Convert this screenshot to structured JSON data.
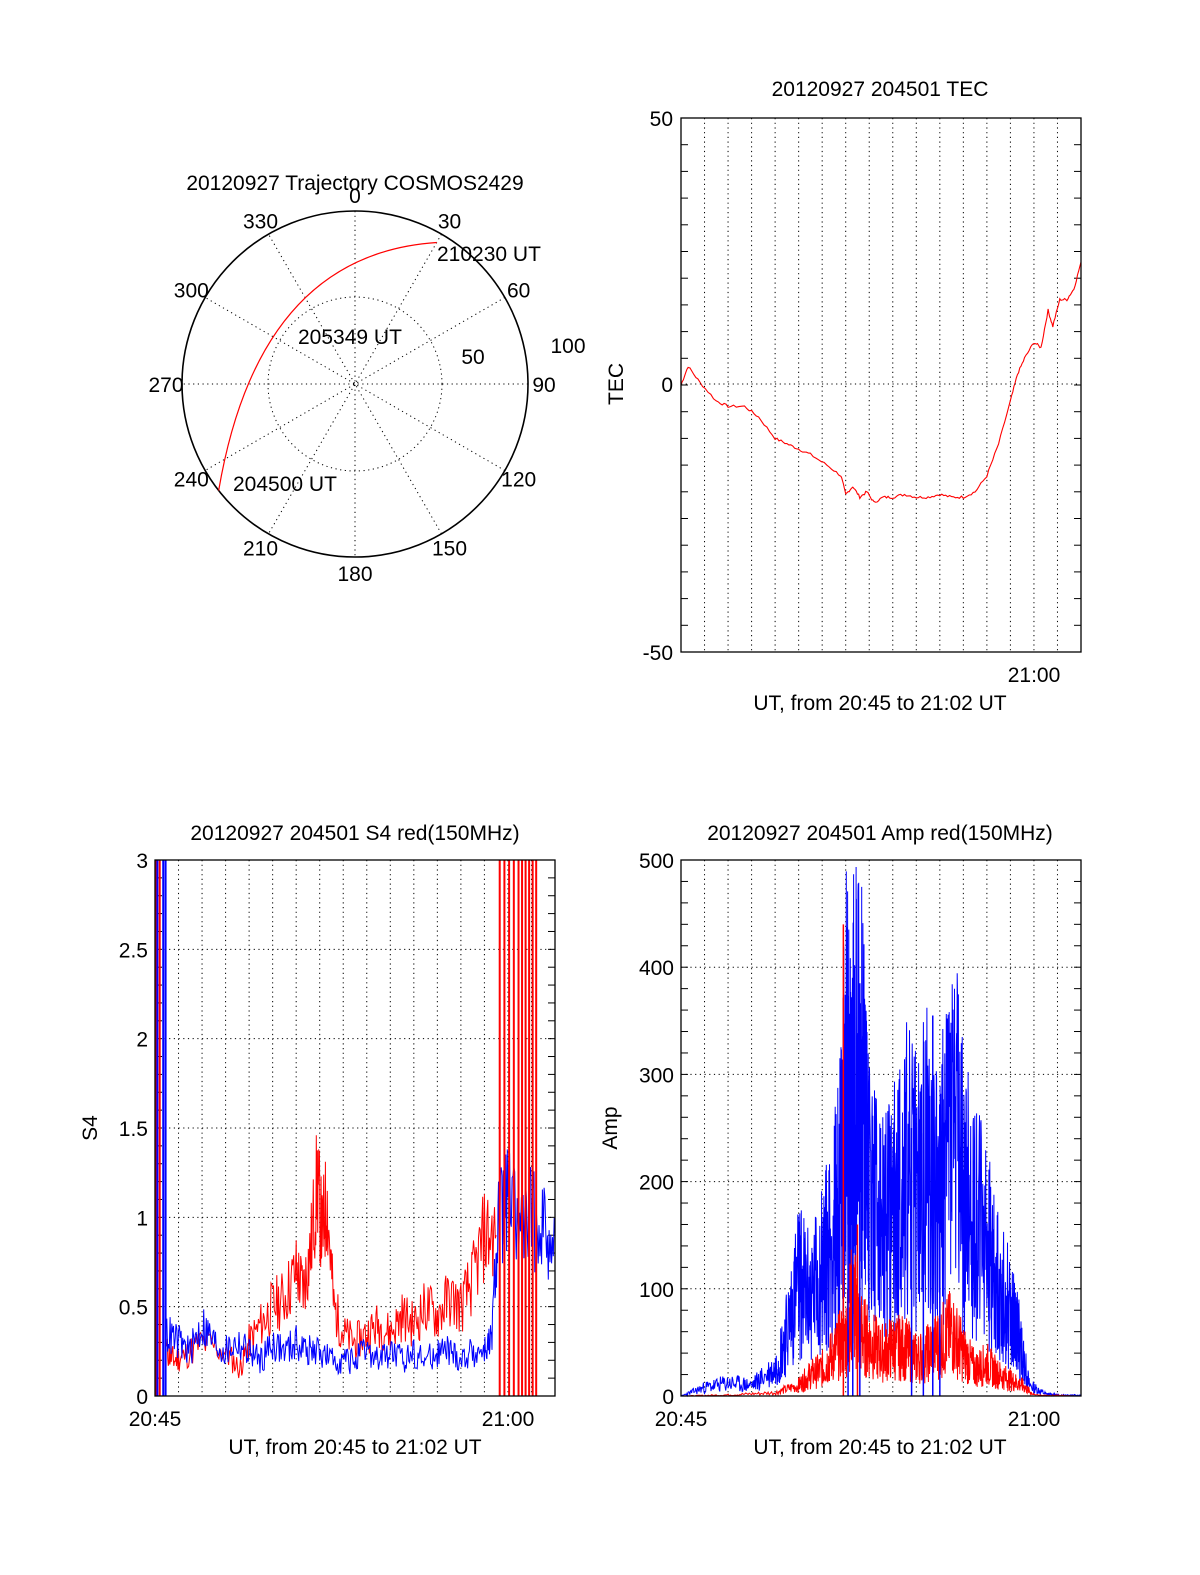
{
  "chart_data": [
    {
      "type": "polar",
      "title": "20120927 Trajectory COSMOS2429",
      "azimuth_labels": [
        "0",
        "30",
        "60",
        "90",
        "120",
        "150",
        "180",
        "210",
        "240",
        "270",
        "300",
        "330"
      ],
      "radial_labels": [
        "50",
        "100"
      ],
      "trajectory_points": [
        {
          "label": "204500 UT",
          "azimuth_deg": 232,
          "zenith_deg": 90
        },
        {
          "label": "205349 UT",
          "azimuth_deg": 320,
          "zenith_deg": 50
        },
        {
          "label": "210230 UT",
          "azimuth_deg": 30,
          "zenith_deg": 85
        }
      ],
      "trajectory_color": "#ff0000"
    },
    {
      "type": "line",
      "title": "20120927 204501 TEC",
      "xlabel": "UT, from 20:45 to 21:02 UT",
      "ylabel": "TEC",
      "ylim": [
        -50,
        50
      ],
      "yticks": [
        "50",
        "0",
        "-50"
      ],
      "xlim_minutes": [
        0,
        17
      ],
      "xticks": [
        "21:00"
      ],
      "grid": "vertical dotted",
      "series": [
        {
          "color": "#ff0000",
          "x": [
            0,
            0.3,
            0.8,
            1.5,
            2.0,
            2.7,
            3.3,
            4.0,
            4.5,
            5.0,
            5.5,
            6.2,
            6.8,
            7.0,
            7.3,
            7.6,
            7.9,
            8.2,
            8.6,
            9.0,
            9.5,
            10.0,
            10.5,
            11.0,
            11.5,
            12.0,
            12.5,
            13.0,
            13.5,
            14.0,
            14.3,
            14.6,
            15.0,
            15.3,
            15.6,
            15.8,
            16.1,
            16.4,
            16.7,
            17.0
          ],
          "y": [
            0,
            3.5,
            0.5,
            -3,
            -4,
            -4,
            -6,
            -10,
            -11,
            -12,
            -13,
            -15,
            -17,
            -20.5,
            -19,
            -21,
            -20,
            -22,
            -21,
            -21,
            -20.5,
            -21,
            -21,
            -20.5,
            -21,
            -21,
            -20,
            -17,
            -11,
            -3,
            2,
            5,
            8,
            7,
            14,
            11,
            16,
            16,
            18,
            23
          ]
        }
      ]
    },
    {
      "type": "line",
      "title": "20120927 204501 S4 red(150MHz)",
      "xlabel": "UT, from 20:45 to 21:02 UT",
      "ylabel": "S4",
      "ylim": [
        0,
        3
      ],
      "yticks": [
        "0",
        "0.5",
        "1",
        "1.5",
        "2",
        "2.5",
        "3"
      ],
      "xlim_minutes": [
        0,
        17
      ],
      "xticks": [
        "20:45",
        "21:00"
      ],
      "grid": "dotted",
      "series": [
        {
          "color": "#ff0000",
          "x": [
            0.5,
            0.8,
            1.2,
            2.0,
            3.0,
            3.6,
            4.0,
            4.5,
            5.0,
            5.5,
            6.0,
            6.3,
            6.6,
            6.9,
            7.1,
            7.3,
            7.6,
            8.0,
            8.5,
            9.0,
            9.5,
            10.0,
            10.5,
            11.0,
            11.5,
            12.0,
            12.5,
            13.0,
            13.5,
            14.0,
            14.5
          ],
          "y": [
            0.25,
            0.2,
            0.22,
            0.3,
            0.25,
            0.15,
            0.3,
            0.4,
            0.5,
            0.55,
            0.7,
            0.6,
            0.8,
            1.2,
            0.9,
            1.1,
            0.5,
            0.35,
            0.3,
            0.35,
            0.4,
            0.35,
            0.45,
            0.4,
            0.5,
            0.45,
            0.55,
            0.5,
            0.65,
            0.9,
            0.9
          ]
        },
        {
          "color": "#0000ff",
          "x": [
            0.5,
            1.0,
            1.5,
            2.0,
            2.5,
            3.0,
            3.5,
            4.0,
            4.5,
            5.0,
            5.5,
            6.0,
            6.5,
            7.0,
            7.5,
            8.0,
            8.5,
            9.0,
            9.5,
            10.0,
            10.5,
            11.0,
            11.5,
            12.0,
            12.5,
            13.0,
            13.5,
            14.0,
            14.3,
            14.6,
            15.0,
            15.5,
            16.0,
            16.5,
            17.0
          ],
          "y": [
            0.35,
            0.3,
            0.25,
            0.4,
            0.3,
            0.25,
            0.3,
            0.25,
            0.2,
            0.3,
            0.25,
            0.3,
            0.25,
            0.25,
            0.2,
            0.2,
            0.2,
            0.25,
            0.2,
            0.25,
            0.2,
            0.25,
            0.2,
            0.25,
            0.25,
            0.2,
            0.25,
            0.25,
            0.3,
            1.0,
            1.1,
            0.9,
            1.0,
            0.95,
            0.9
          ]
        }
      ],
      "spikes": [
        {
          "color": "#ff0000",
          "x": [
            0.05,
            0.2,
            14.65,
            14.85,
            15.05,
            15.25,
            15.45,
            15.6,
            15.75,
            15.9,
            16.05,
            16.2
          ]
        },
        {
          "color": "#0000ff",
          "x": [
            0.1,
            0.35,
            0.45
          ]
        }
      ]
    },
    {
      "type": "line",
      "title": "20120927 204501 Amp red(150MHz)",
      "xlabel": "UT, from 20:45 to 21:02 UT",
      "ylabel": "Amp",
      "ylim": [
        0,
        500
      ],
      "yticks": [
        "0",
        "100",
        "200",
        "300",
        "400",
        "500"
      ],
      "xlim_minutes": [
        0,
        17
      ],
      "xticks": [
        "20:45",
        "21:00"
      ],
      "grid": "dotted",
      "series": [
        {
          "color": "#0000ff",
          "x": [
            0,
            1.0,
            2.0,
            3.0,
            4.0,
            4.5,
            5.0,
            5.5,
            6.0,
            6.5,
            6.8,
            7.0,
            7.2,
            7.5,
            7.8,
            8.0,
            8.5,
            9.0,
            9.5,
            10.0,
            10.5,
            11.0,
            11.5,
            12.0,
            12.5,
            13.0,
            13.5,
            14.0,
            14.3,
            14.8,
            15.5,
            16.0,
            17.0
          ],
          "y": [
            0,
            8,
            12,
            10,
            25,
            60,
            110,
            90,
            120,
            150,
            200,
            300,
            260,
            330,
            250,
            200,
            150,
            170,
            210,
            190,
            220,
            180,
            270,
            190,
            170,
            140,
            100,
            80,
            60,
            10,
            2,
            1,
            1
          ]
        },
        {
          "color": "#ff0000",
          "x": [
            0,
            2.0,
            4.0,
            5.0,
            5.5,
            6.0,
            6.5,
            7.0,
            7.3,
            7.6,
            8.0,
            8.5,
            9.0,
            9.5,
            10.0,
            10.5,
            11.0,
            11.5,
            12.0,
            12.5,
            13.0,
            13.5,
            14.0,
            14.5,
            15.0,
            17.0
          ],
          "y": [
            0,
            1,
            3,
            10,
            20,
            25,
            40,
            55,
            90,
            60,
            50,
            40,
            45,
            45,
            35,
            40,
            50,
            60,
            40,
            25,
            30,
            20,
            15,
            10,
            1,
            0
          ]
        }
      ],
      "spikes": [
        {
          "color": "#ff0000",
          "x": [
            6.9,
            7.5
          ],
          "y": [
            440,
            160
          ]
        },
        {
          "color": "#0000ff",
          "x": [
            7.1,
            7.3,
            7.6,
            9.8,
            10.3,
            10.7,
            11.0
          ],
          "y": [
            330,
            360,
            385,
            250,
            245,
            355,
            250
          ]
        }
      ]
    }
  ]
}
